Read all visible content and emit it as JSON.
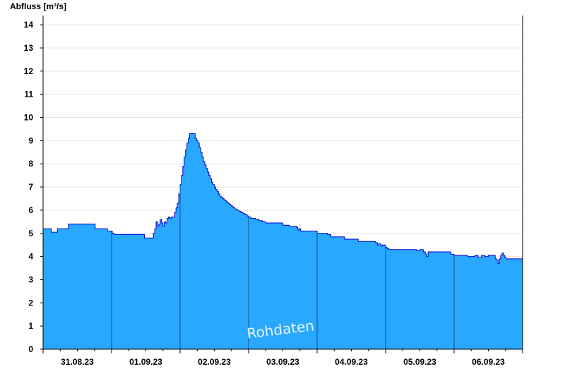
{
  "chart_data": {
    "type": "area",
    "title": "",
    "ylabel": "Abfluss [m³/s]",
    "xlabel": "",
    "ylim": [
      0,
      14.4
    ],
    "xlim": [
      0,
      7
    ],
    "y_ticks": [
      0,
      1,
      2,
      3,
      4,
      5,
      6,
      7,
      8,
      9,
      10,
      11,
      12,
      13,
      14
    ],
    "grid": true,
    "watermark": "Rohdaten",
    "fill_color": "#28a8ff",
    "line_color": "#0000cc",
    "day_labels": [
      "31.08.23",
      "01.09.23",
      "02.09.23",
      "03.09.23",
      "04.09.23",
      "05.09.23",
      "06.09.23"
    ],
    "series": [
      {
        "x": [
          0,
          0.11,
          0.12,
          0.2,
          0.21,
          0.36,
          0.37,
          0.75,
          0.76,
          0.93,
          0.94,
          1.0,
          1.01,
          1.03,
          1.04,
          1.47,
          1.48,
          1.6,
          1.61,
          1.63,
          1.65,
          1.67,
          1.69,
          1.71,
          1.73,
          1.75,
          1.77,
          1.79,
          1.81,
          1.83,
          1.85,
          1.87,
          1.92,
          1.94,
          1.96,
          1.98,
          2.0,
          2.02,
          2.04,
          2.06,
          2.08,
          2.1,
          2.12,
          2.14,
          2.16,
          2.18,
          2.2,
          2.22,
          2.24,
          2.26,
          2.28,
          2.3,
          2.32,
          2.34,
          2.36,
          2.38,
          2.4,
          2.42,
          2.44,
          2.46,
          2.48,
          2.5,
          2.52,
          2.54,
          2.56,
          2.58,
          2.6,
          2.62,
          2.64,
          2.66,
          2.68,
          2.7,
          2.72,
          2.74,
          2.76,
          2.78,
          2.8,
          2.83,
          2.86,
          2.89,
          2.92,
          2.95,
          2.98,
          3.0,
          3.03,
          3.1,
          3.15,
          3.2,
          3.25,
          3.5,
          3.6,
          3.7,
          3.72,
          3.74,
          3.76,
          3.95,
          4.0,
          4.15,
          4.2,
          4.4,
          4.6,
          4.85,
          4.88,
          4.9,
          4.93,
          4.95,
          5.0,
          5.02,
          5.05,
          5.1,
          5.4,
          5.45,
          5.5,
          5.55,
          5.58,
          5.6,
          5.62,
          5.65,
          5.7,
          5.75,
          5.8,
          5.85,
          5.9,
          5.95,
          6.0,
          6.1,
          6.2,
          6.3,
          6.35,
          6.4,
          6.45,
          6.5,
          6.55,
          6.6,
          6.62,
          6.64,
          6.66,
          6.68,
          6.7,
          6.72,
          6.74,
          6.76,
          6.78,
          6.8,
          6.82,
          6.84,
          6.86,
          6.88,
          6.9,
          7.0
        ],
        "y": [
          5.2,
          5.2,
          5.05,
          5.05,
          5.2,
          5.2,
          5.4,
          5.4,
          5.2,
          5.2,
          5.1,
          5.1,
          5.0,
          5.0,
          4.95,
          4.95,
          4.8,
          4.8,
          5.0,
          5.2,
          5.5,
          5.3,
          5.4,
          5.6,
          5.45,
          5.3,
          5.5,
          5.45,
          5.65,
          5.7,
          5.65,
          5.7,
          5.9,
          6.1,
          6.3,
          6.7,
          7.1,
          7.5,
          7.9,
          8.3,
          8.6,
          8.9,
          9.1,
          9.3,
          9.3,
          9.3,
          9.3,
          9.1,
          9.0,
          8.9,
          8.7,
          8.5,
          8.3,
          8.1,
          7.95,
          7.8,
          7.65,
          7.5,
          7.35,
          7.2,
          7.1,
          7.0,
          6.9,
          6.8,
          6.7,
          6.6,
          6.55,
          6.5,
          6.45,
          6.4,
          6.35,
          6.3,
          6.25,
          6.2,
          6.15,
          6.1,
          6.05,
          6.0,
          5.95,
          5.9,
          5.85,
          5.8,
          5.75,
          5.7,
          5.65,
          5.6,
          5.55,
          5.5,
          5.45,
          5.35,
          5.3,
          5.25,
          5.15,
          5.2,
          5.1,
          5.1,
          5.0,
          4.95,
          4.85,
          4.75,
          4.65,
          4.6,
          4.5,
          4.55,
          4.45,
          4.5,
          4.4,
          4.35,
          4.3,
          4.3,
          4.3,
          4.25,
          4.3,
          4.2,
          4.1,
          4.0,
          4.2,
          4.2,
          4.2,
          4.2,
          4.2,
          4.2,
          4.2,
          4.1,
          4.05,
          4.05,
          4.0,
          4.05,
          3.95,
          4.05,
          4.0,
          4.05,
          4.05,
          3.9,
          3.85,
          3.7,
          3.9,
          4.05,
          4.15,
          4.05,
          3.95,
          3.9,
          3.9,
          3.9,
          3.9,
          3.9,
          3.9,
          3.9,
          3.9,
          3.9
        ]
      }
    ]
  }
}
